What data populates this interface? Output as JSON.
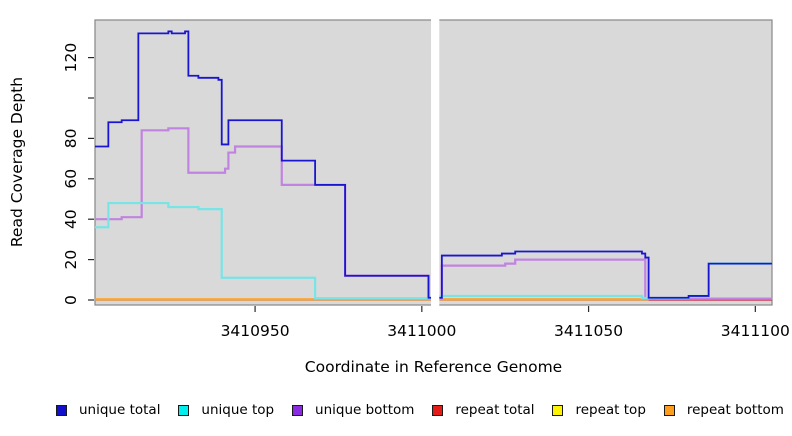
{
  "figure": {
    "title": "",
    "plot_background": "#d9d9d9",
    "frame_color": "#878787",
    "tick_color": "#2a2a2a",
    "mask_color": "#ffffff"
  },
  "legend": {
    "items": [
      {
        "label": "unique total",
        "color": "#1111cd"
      },
      {
        "label": "unique top",
        "color": "#00eeee"
      },
      {
        "label": "unique bottom",
        "color": "#8a2be2"
      },
      {
        "label": "repeat total",
        "color": "#e41b17"
      },
      {
        "label": "repeat top",
        "color": "#fdf403"
      },
      {
        "label": "repeat bottom",
        "color": "#ff9e1b"
      }
    ]
  },
  "chart_data": {
    "type": "line",
    "subtype": "step",
    "title": "",
    "xlabel": "Coordinate in Reference Genome",
    "ylabel": "Read Coverage Depth",
    "grid": false,
    "legend_position": "bottom",
    "xlim": [
      3410902,
      3411105
    ],
    "ylim": [
      0,
      139
    ],
    "xticks": [
      3410950,
      3411000,
      3411050,
      3411100
    ],
    "xtick_labels": [
      "3410950",
      "3411000",
      "3411050",
      "3411100"
    ],
    "yticks": [
      0,
      20,
      40,
      60,
      80,
      100,
      120
    ],
    "ytick_labels": [
      "0",
      "20",
      "40",
      "60",
      "80",
      "",
      "120"
    ],
    "masked_region": {
      "x_from": 3411003,
      "x_to": 3411005,
      "note": "white vertical band masking all series"
    },
    "series": [
      {
        "name": "repeat total",
        "color": "#cf3c55",
        "points": [
          [
            3410902,
            0
          ],
          [
            3411105,
            0
          ]
        ]
      },
      {
        "name": "repeat top",
        "color": "#f2e43a",
        "points": [
          [
            3410902,
            0
          ],
          [
            3411068,
            0
          ]
        ]
      },
      {
        "name": "repeat bottom",
        "color": "#ff9e1b",
        "points": [
          [
            3410902,
            0
          ],
          [
            3411068,
            0
          ]
        ]
      },
      {
        "name": "unique bottom",
        "color": "#c183e0",
        "points": [
          [
            3410902,
            40
          ],
          [
            3410910,
            41
          ],
          [
            3410916,
            84
          ],
          [
            3410924,
            85
          ],
          [
            3410930,
            63
          ],
          [
            3410941,
            65
          ],
          [
            3410942,
            73
          ],
          [
            3410944,
            76
          ],
          [
            3410958,
            57
          ],
          [
            3410977,
            12
          ],
          [
            3411002,
            0
          ],
          [
            3411006,
            17
          ],
          [
            3411025,
            18
          ],
          [
            3411028,
            20
          ],
          [
            3411067,
            0
          ],
          [
            3411105,
            0
          ]
        ]
      },
      {
        "name": "unique top",
        "color": "#79e4e6",
        "points": [
          [
            3410902,
            36
          ],
          [
            3410906,
            48
          ],
          [
            3410924,
            46
          ],
          [
            3410933,
            45
          ],
          [
            3410940,
            11
          ],
          [
            3410968,
            0
          ],
          [
            3411005,
            2
          ],
          [
            3411066,
            1
          ],
          [
            3411067,
            0
          ],
          [
            3411080,
            2
          ],
          [
            3411086,
            18
          ],
          [
            3411105,
            18
          ]
        ]
      },
      {
        "name": "unique total",
        "color": "#1a16cf",
        "points": [
          [
            3410902,
            76
          ],
          [
            3410906,
            88
          ],
          [
            3410910,
            89
          ],
          [
            3410915,
            132
          ],
          [
            3410924,
            133
          ],
          [
            3410925,
            132
          ],
          [
            3410929,
            133
          ],
          [
            3410930,
            111
          ],
          [
            3410933,
            110
          ],
          [
            3410939,
            109
          ],
          [
            3410940,
            77
          ],
          [
            3410942,
            89
          ],
          [
            3410958,
            69
          ],
          [
            3410968,
            57
          ],
          [
            3410977,
            12
          ],
          [
            3411002,
            0
          ],
          [
            3411006,
            22
          ],
          [
            3411024,
            23
          ],
          [
            3411028,
            24
          ],
          [
            3411066,
            23
          ],
          [
            3411067,
            21
          ],
          [
            3411068,
            0
          ],
          [
            3411080,
            2
          ],
          [
            3411086,
            18
          ],
          [
            3411105,
            18
          ]
        ]
      }
    ]
  }
}
